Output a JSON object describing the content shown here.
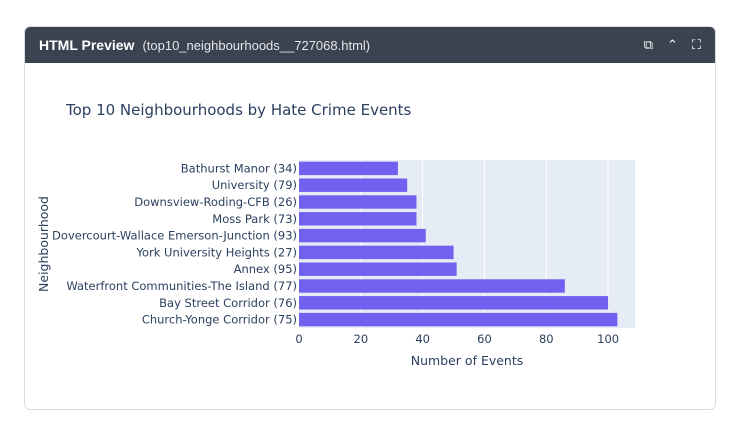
{
  "window": {
    "title": "HTML Preview",
    "filename": "(top10_neighbourhoods__727068.html)",
    "icons": [
      "copy-icon",
      "chevron-up-icon",
      "fullscreen-icon"
    ]
  },
  "chart_data": {
    "type": "bar",
    "orientation": "horizontal",
    "title": "Top 10 Neighbourhoods by Hate Crime Events",
    "xlabel": "Number of Events",
    "ylabel": "Neighbourhood",
    "xlim": [
      0,
      108.7
    ],
    "xticks": [
      0,
      20,
      40,
      60,
      80,
      100
    ],
    "grid": true,
    "categories": [
      "Bathurst Manor (34)",
      "University (79)",
      "Downsview-Roding-CFB (26)",
      "Moss Park (73)",
      "Dovercourt-Wallace Emerson-Junction (93)",
      "York University Heights (27)",
      "Annex (95)",
      "Waterfront Communities-The Island (77)",
      "Bay Street Corridor (76)",
      "Church-Yonge Corridor (75)"
    ],
    "values": [
      32,
      35,
      38,
      38,
      41,
      50,
      51,
      86,
      100,
      103
    ],
    "colors": {
      "bar": "#7261f0",
      "plot_bg": "#e5ecf6"
    }
  }
}
